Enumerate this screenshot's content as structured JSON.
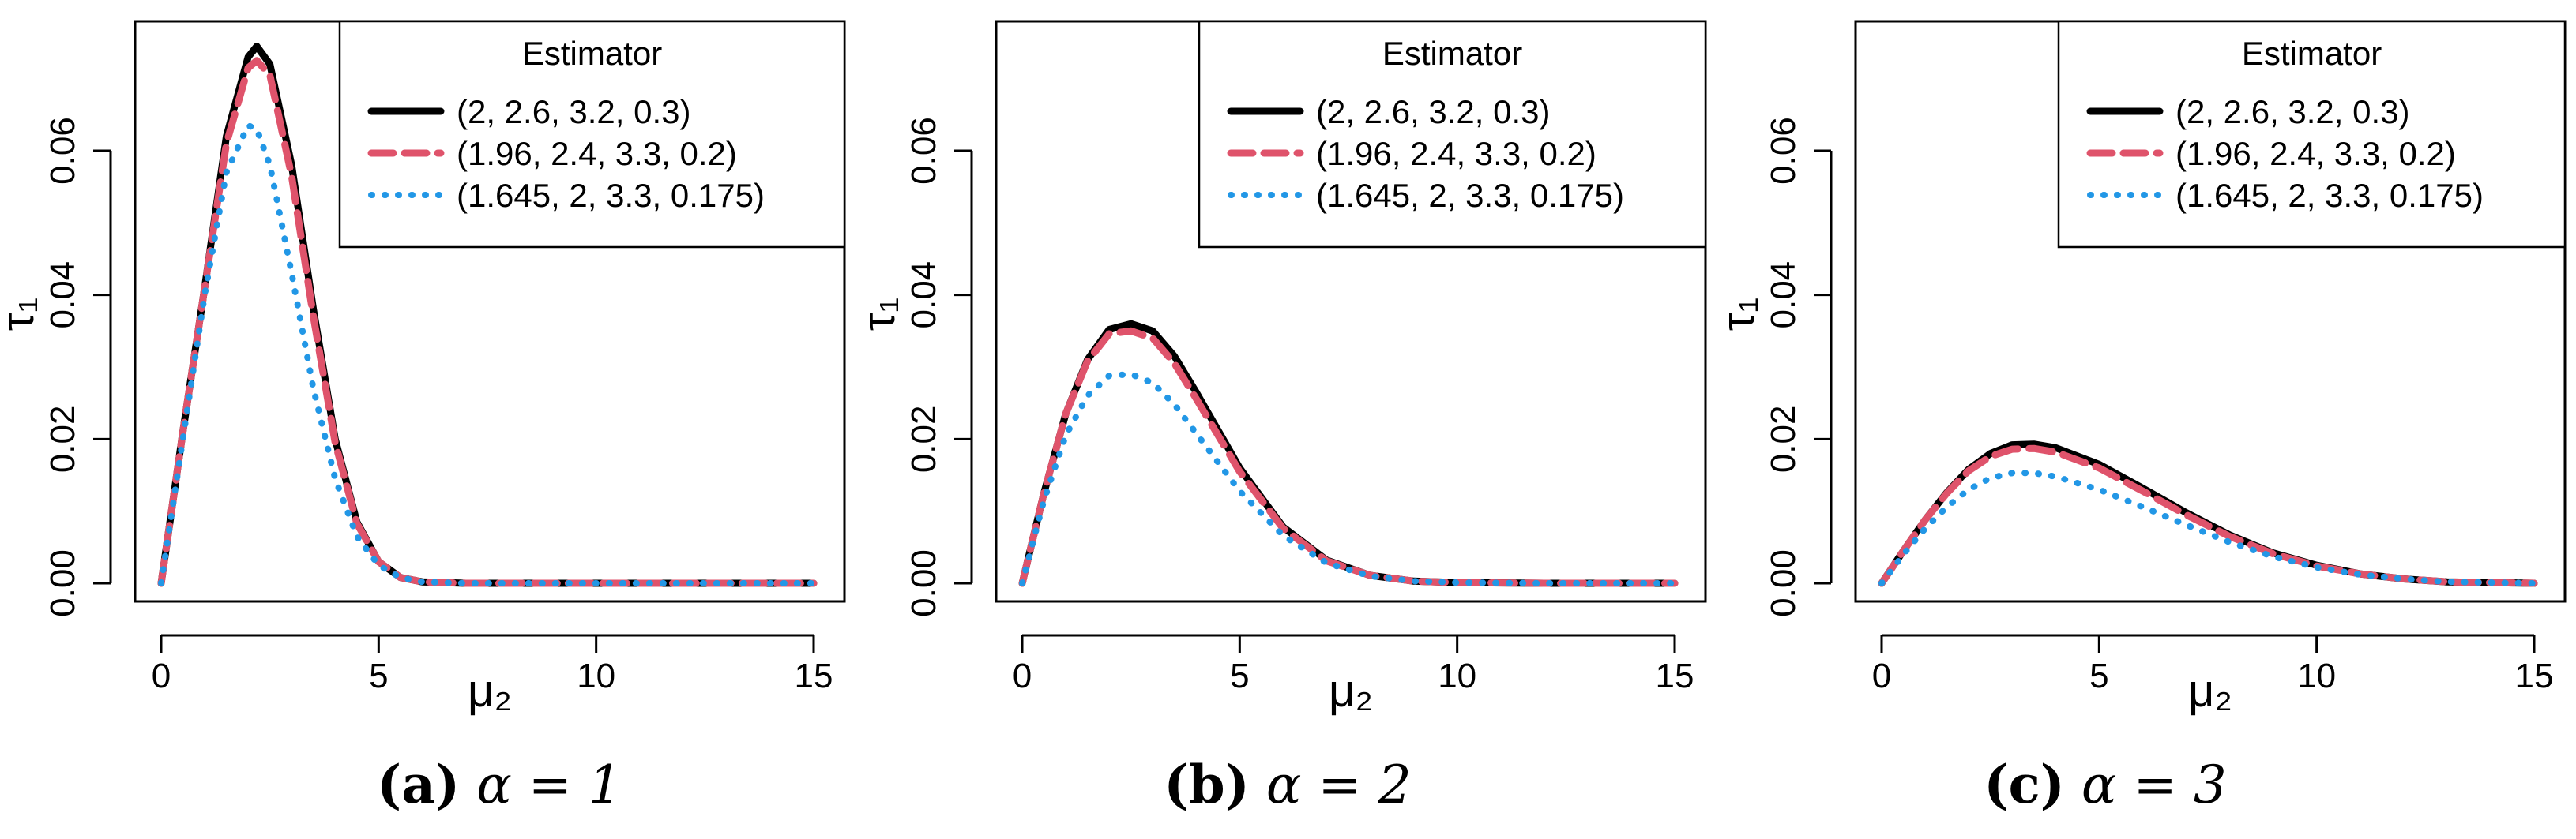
{
  "chart_data": [
    {
      "type": "line",
      "panel_label": "(a)",
      "panel_caption": "α = 1",
      "alpha": 1,
      "xlabel": "μ₂",
      "ylabel": "τ₁",
      "xlim": [
        0,
        15
      ],
      "ylim": [
        0,
        0.076
      ],
      "x_ticks": [
        0,
        5,
        10,
        15
      ],
      "y_ticks": [
        0.0,
        0.02,
        0.04,
        0.06
      ],
      "x_tick_labels": [
        "0",
        "5",
        "10",
        "15"
      ],
      "y_tick_labels": [
        "0.00",
        "0.02",
        "0.04",
        "0.06"
      ],
      "legend_title": "Estimator",
      "legend_position": "top-right",
      "series": [
        {
          "name": "(2, 2.6, 3.2, 0.3)",
          "color": "#000000",
          "style": "solid",
          "x": [
            0,
            0.5,
            1,
            1.5,
            2,
            2.2,
            2.5,
            3,
            3.5,
            4,
            4.5,
            5,
            5.5,
            6,
            7,
            8,
            10,
            12,
            15
          ],
          "y": [
            0,
            0.021,
            0.041,
            0.062,
            0.073,
            0.0745,
            0.072,
            0.058,
            0.038,
            0.02,
            0.0085,
            0.003,
            0.0008,
            0.0002,
            0,
            0,
            0,
            0,
            0
          ]
        },
        {
          "name": "(1.96, 2.4, 3.3, 0.2)",
          "color": "#DF536B",
          "style": "dashed",
          "x": [
            0,
            0.5,
            1,
            1.5,
            2,
            2.2,
            2.5,
            3,
            3.5,
            4,
            4.5,
            5,
            5.5,
            6,
            7,
            8,
            10,
            12,
            15
          ],
          "y": [
            0,
            0.021,
            0.041,
            0.061,
            0.0715,
            0.0725,
            0.0705,
            0.0565,
            0.037,
            0.0195,
            0.0083,
            0.003,
            0.0008,
            0.0002,
            0,
            0,
            0,
            0,
            0
          ]
        },
        {
          "name": "(1.645, 2, 3.3, 0.175)",
          "color": "#2297E6",
          "style": "dotted",
          "x": [
            0,
            0.5,
            1,
            1.5,
            2,
            2.2,
            2.5,
            3,
            3.5,
            4,
            4.5,
            5,
            5.5,
            6,
            7,
            8,
            10,
            12,
            15
          ],
          "y": [
            0,
            0.02,
            0.04,
            0.057,
            0.0635,
            0.063,
            0.058,
            0.043,
            0.027,
            0.0145,
            0.0065,
            0.0025,
            0.0008,
            0.0002,
            0,
            0,
            0,
            0,
            0
          ]
        }
      ]
    },
    {
      "type": "line",
      "panel_label": "(b)",
      "panel_caption": "α = 2",
      "alpha": 2,
      "xlabel": "μ₂",
      "ylabel": "τ₁",
      "xlim": [
        0,
        15
      ],
      "ylim": [
        0,
        0.076
      ],
      "x_ticks": [
        0,
        5,
        10,
        15
      ],
      "y_ticks": [
        0.0,
        0.02,
        0.04,
        0.06
      ],
      "x_tick_labels": [
        "0",
        "5",
        "10",
        "15"
      ],
      "y_tick_labels": [
        "0.00",
        "0.02",
        "0.04",
        "0.06"
      ],
      "legend_title": "Estimator",
      "legend_position": "top-right",
      "series": [
        {
          "name": "(2, 2.6, 3.2, 0.3)",
          "color": "#000000",
          "style": "solid",
          "x": [
            0,
            0.5,
            1,
            1.5,
            2,
            2.5,
            3,
            3.5,
            4,
            5,
            6,
            7,
            8,
            9,
            10,
            12,
            15
          ],
          "y": [
            0,
            0.0125,
            0.0235,
            0.031,
            0.0352,
            0.036,
            0.035,
            0.0315,
            0.0265,
            0.016,
            0.0078,
            0.0032,
            0.0011,
            0.0003,
            0.0001,
            0,
            0
          ]
        },
        {
          "name": "(1.96, 2.4, 3.3, 0.2)",
          "color": "#DF536B",
          "style": "dashed",
          "x": [
            0,
            0.5,
            1,
            1.5,
            2,
            2.5,
            3,
            3.5,
            4,
            5,
            6,
            7,
            8,
            9,
            10,
            12,
            15
          ],
          "y": [
            0,
            0.0125,
            0.0235,
            0.0308,
            0.0346,
            0.035,
            0.034,
            0.0305,
            0.0256,
            0.0155,
            0.0076,
            0.0031,
            0.0011,
            0.0003,
            0.0001,
            0,
            0
          ]
        },
        {
          "name": "(1.645, 2, 3.3, 0.175)",
          "color": "#2297E6",
          "style": "dotted",
          "x": [
            0,
            0.5,
            1,
            1.5,
            2,
            2.5,
            3,
            3.5,
            4,
            5,
            6,
            7,
            8,
            9,
            10,
            12,
            15
          ],
          "y": [
            0,
            0.0115,
            0.0205,
            0.026,
            0.0288,
            0.029,
            0.0278,
            0.0248,
            0.0208,
            0.0128,
            0.0066,
            0.0028,
            0.001,
            0.0003,
            0.0001,
            0,
            0
          ]
        }
      ]
    },
    {
      "type": "line",
      "panel_label": "(c)",
      "panel_caption": "α = 3",
      "alpha": 3,
      "xlabel": "μ₂",
      "ylabel": "τ₁",
      "xlim": [
        0,
        15
      ],
      "ylim": [
        0,
        0.076
      ],
      "x_ticks": [
        0,
        5,
        10,
        15
      ],
      "y_ticks": [
        0.0,
        0.02,
        0.04,
        0.06
      ],
      "x_tick_labels": [
        "0",
        "5",
        "10",
        "15"
      ],
      "y_tick_labels": [
        "0.00",
        "0.02",
        "0.04",
        "0.06"
      ],
      "legend_title": "Estimator",
      "legend_position": "top-right",
      "series": [
        {
          "name": "(2, 2.6, 3.2, 0.3)",
          "color": "#000000",
          "style": "solid",
          "x": [
            0,
            0.5,
            1,
            1.5,
            2,
            2.5,
            3,
            3.5,
            4,
            5,
            6,
            7,
            8,
            9,
            10,
            11,
            12,
            13,
            15
          ],
          "y": [
            0,
            0.0045,
            0.0088,
            0.0126,
            0.0158,
            0.018,
            0.0192,
            0.0193,
            0.0188,
            0.0165,
            0.0132,
            0.0098,
            0.0067,
            0.0042,
            0.0025,
            0.0013,
            0.0006,
            0.0002,
            0
          ]
        },
        {
          "name": "(1.96, 2.4, 3.3, 0.2)",
          "color": "#DF536B",
          "style": "dashed",
          "x": [
            0,
            0.5,
            1,
            1.5,
            2,
            2.5,
            3,
            3.5,
            4,
            5,
            6,
            7,
            8,
            9,
            10,
            11,
            12,
            13,
            15
          ],
          "y": [
            0,
            0.0045,
            0.0088,
            0.0125,
            0.0156,
            0.0176,
            0.0186,
            0.0187,
            0.0182,
            0.016,
            0.0128,
            0.0095,
            0.0065,
            0.0041,
            0.0024,
            0.0013,
            0.0006,
            0.0002,
            0
          ]
        },
        {
          "name": "(1.645, 2, 3.3, 0.175)",
          "color": "#2297E6",
          "style": "dotted",
          "x": [
            0,
            0.5,
            1,
            1.5,
            2,
            2.5,
            3,
            3.5,
            4,
            5,
            6,
            7,
            8,
            9,
            10,
            11,
            12,
            13,
            15
          ],
          "y": [
            0,
            0.004,
            0.0076,
            0.0106,
            0.013,
            0.0146,
            0.0153,
            0.0153,
            0.0148,
            0.013,
            0.0106,
            0.0081,
            0.0057,
            0.0037,
            0.0022,
            0.0012,
            0.0006,
            0.0002,
            0
          ]
        }
      ]
    }
  ]
}
